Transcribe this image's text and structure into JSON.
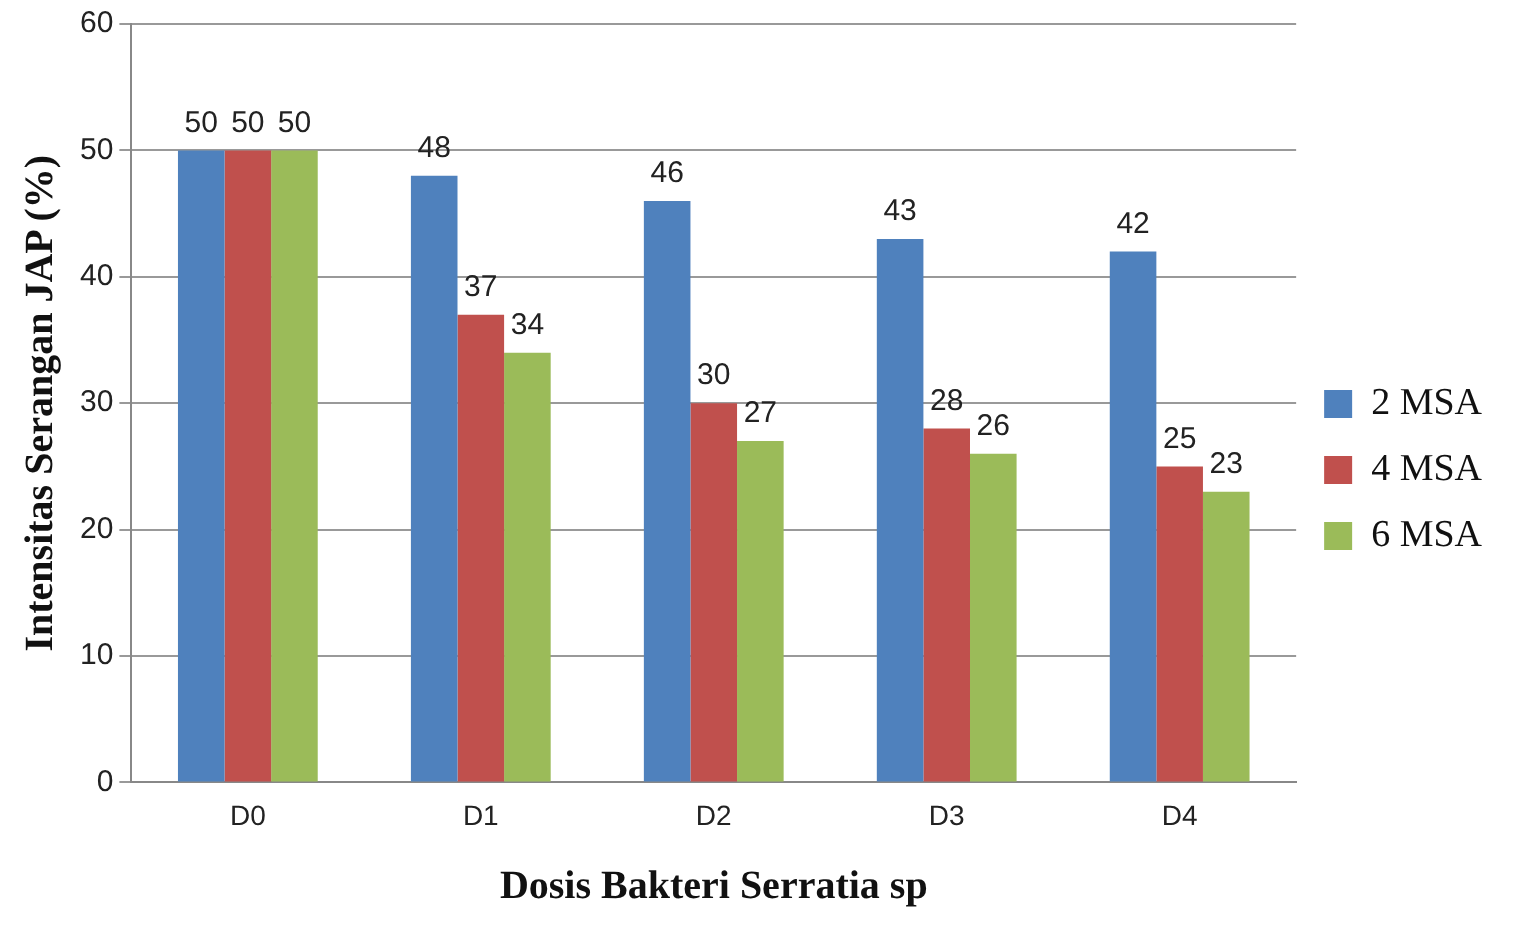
{
  "chart_data": {
    "type": "bar",
    "xlabel": "Dosis Bakteri Serratia sp",
    "ylabel": "Intensitas Serangan JAP (%)",
    "categories": [
      "D0",
      "D1",
      "D2",
      "D3",
      "D4"
    ],
    "series": [
      {
        "name": "2 MSA",
        "color": "#4f81bd",
        "values": [
          50,
          48,
          46,
          43,
          42
        ]
      },
      {
        "name": "4 MSA",
        "color": "#c0504d",
        "values": [
          50,
          37,
          30,
          28,
          25
        ]
      },
      {
        "name": "6 MSA",
        "color": "#9bbb59",
        "values": [
          50,
          34,
          27,
          26,
          23
        ]
      }
    ],
    "ylim": [
      0,
      60
    ],
    "yticks": [
      0,
      10,
      20,
      30,
      40,
      50,
      60
    ],
    "grid": "y",
    "legend": "right",
    "data_labels": true
  }
}
